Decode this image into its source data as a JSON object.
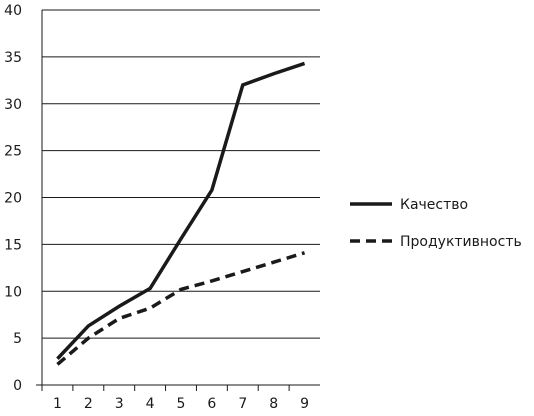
{
  "chart_data": {
    "type": "line",
    "title": "",
    "xlabel": "",
    "ylabel": "",
    "x": [
      1,
      2,
      3,
      4,
      5,
      6,
      7,
      8,
      9
    ],
    "ylim": [
      0,
      40
    ],
    "yticks": [
      0,
      5,
      10,
      15,
      20,
      25,
      30,
      35,
      40
    ],
    "grid": "horizontal",
    "legend_position": "right",
    "series": [
      {
        "name": "Качество",
        "style": "solid",
        "color": "#1a1a1a",
        "values": [
          2.8,
          6.3,
          8.4,
          10.3,
          15.6,
          20.8,
          32.0,
          33.2,
          34.3
        ]
      },
      {
        "name": "Продуктивность",
        "style": "dashed",
        "color": "#1a1a1a",
        "values": [
          2.2,
          5.0,
          7.1,
          8.2,
          10.2,
          11.1,
          12.1,
          13.1,
          14.1
        ]
      }
    ]
  }
}
